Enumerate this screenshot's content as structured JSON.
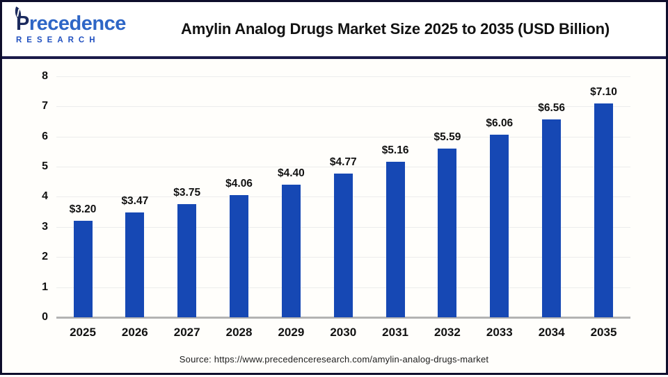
{
  "logo": {
    "word_initial": "P",
    "word_rest": "recedence",
    "subtext": "RESEARCH"
  },
  "header": {
    "title": "Amylin Analog Drugs Market Size 2025 to 2035 (USD Billion)"
  },
  "footer": {
    "source": "Source: https://www.precedenceresearch.com/amylin-analog-drugs-market"
  },
  "colors": {
    "bar": "#1648B4",
    "gridline": "#ececec",
    "axis_line": "#b3b3b3",
    "separator": "#1a1a4a",
    "frame_border": "#0d0d2b",
    "logo_navy": "#1b2a5e",
    "logo_blue": "#2e66c6",
    "label_text": "#111111"
  },
  "chart_data": {
    "type": "bar",
    "title": "Amylin Analog Drugs Market Size 2025 to 2035 (USD Billion)",
    "unit": "USD Billion",
    "categories": [
      "2025",
      "2026",
      "2027",
      "2028",
      "2029",
      "2030",
      "2031",
      "2032",
      "2033",
      "2034",
      "2035"
    ],
    "values": [
      3.2,
      3.47,
      3.75,
      4.06,
      4.4,
      4.77,
      5.16,
      5.59,
      6.06,
      6.56,
      7.1
    ],
    "labels": [
      "$3.20",
      "$3.47",
      "$3.75",
      "$4.06",
      "$4.40",
      "$4.77",
      "$5.16",
      "$5.59",
      "$6.06",
      "$6.56",
      "$7.10"
    ],
    "xlabel": "",
    "ylabel": "",
    "ylim": [
      0,
      8
    ],
    "yticks": [
      0,
      1,
      2,
      3,
      4,
      5,
      6,
      7,
      8
    ],
    "grid": true,
    "legend": false
  }
}
